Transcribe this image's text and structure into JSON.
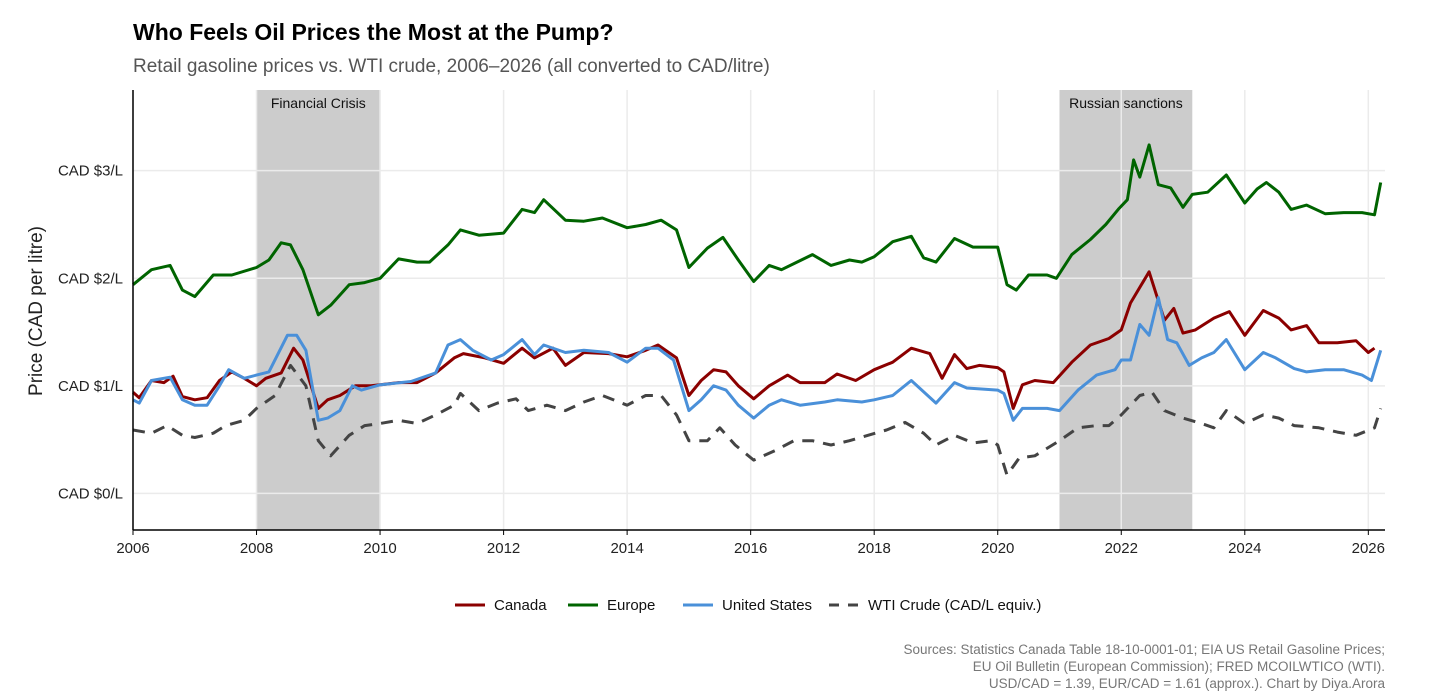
{
  "chart_data": {
    "type": "line",
    "title": "Who Feels Oil Prices the Most at the Pump?",
    "subtitle": "Retail gasoline prices vs. WTI crude, 2006–2026 (all converted to CAD/litre)",
    "xlabel": "",
    "ylabel": "Price (CAD per litre)",
    "xlim": [
      2006,
      2026.27
    ],
    "ylim": [
      -0.34,
      3.75
    ],
    "grid": true,
    "legend_position": "bottom",
    "x_ticks": [
      2006,
      2008,
      2010,
      2012,
      2014,
      2016,
      2018,
      2020,
      2022,
      2024,
      2026
    ],
    "x_tick_labels": [
      "2006",
      "2008",
      "2010",
      "2012",
      "2014",
      "2016",
      "2018",
      "2020",
      "2022",
      "2024",
      "2026"
    ],
    "y_ticks": [
      0,
      1,
      2,
      3
    ],
    "y_tick_labels": [
      "CAD $0/L",
      "CAD $1/L",
      "CAD $2/L",
      "CAD $3/L"
    ],
    "shaded_periods": [
      {
        "label": "Financial Crisis",
        "start": 2008.0,
        "end": 2010.0
      },
      {
        "label": "Russian sanctions",
        "start": 2021.0,
        "end": 2023.15
      }
    ],
    "series": [
      {
        "name": "Canada",
        "color": "#8b0000",
        "dashed": false,
        "x": [
          2006.0,
          2006.1,
          2006.3,
          2006.5,
          2006.65,
          2006.8,
          2007.0,
          2007.2,
          2007.4,
          2007.6,
          2007.8,
          2008.0,
          2008.15,
          2008.4,
          2008.6,
          2008.75,
          2009.0,
          2009.15,
          2009.35,
          2009.6,
          2009.85,
          2010.0,
          2010.3,
          2010.6,
          2010.9,
          2011.2,
          2011.35,
          2011.7,
          2012.0,
          2012.3,
          2012.5,
          2012.8,
          2013.0,
          2013.3,
          2013.7,
          2014.0,
          2014.3,
          2014.5,
          2014.8,
          2015.0,
          2015.2,
          2015.4,
          2015.6,
          2015.8,
          2016.05,
          2016.3,
          2016.6,
          2016.8,
          2017.2,
          2017.4,
          2017.7,
          2018.0,
          2018.3,
          2018.6,
          2018.9,
          2019.1,
          2019.3,
          2019.5,
          2019.7,
          2020.0,
          2020.1,
          2020.25,
          2020.4,
          2020.6,
          2020.9,
          2021.2,
          2021.5,
          2021.8,
          2022.0,
          2022.15,
          2022.45,
          2022.7,
          2022.85,
          2023.0,
          2023.2,
          2023.5,
          2023.75,
          2024.0,
          2024.3,
          2024.55,
          2024.75,
          2025.0,
          2025.2,
          2025.5,
          2025.8,
          2026.0,
          2026.1
        ],
        "values": [
          0.94,
          0.89,
          1.05,
          1.03,
          1.09,
          0.9,
          0.87,
          0.89,
          1.05,
          1.13,
          1.07,
          1.0,
          1.07,
          1.12,
          1.35,
          1.24,
          0.79,
          0.87,
          0.91,
          1.0,
          1.0,
          1.01,
          1.03,
          1.03,
          1.12,
          1.26,
          1.3,
          1.26,
          1.21,
          1.35,
          1.26,
          1.35,
          1.19,
          1.31,
          1.3,
          1.27,
          1.33,
          1.38,
          1.26,
          0.91,
          1.05,
          1.15,
          1.13,
          1.0,
          0.88,
          1.0,
          1.1,
          1.03,
          1.03,
          1.11,
          1.05,
          1.15,
          1.22,
          1.35,
          1.3,
          1.07,
          1.29,
          1.16,
          1.19,
          1.17,
          1.13,
          0.79,
          1.01,
          1.05,
          1.03,
          1.22,
          1.38,
          1.44,
          1.52,
          1.77,
          2.06,
          1.61,
          1.72,
          1.49,
          1.52,
          1.63,
          1.69,
          1.47,
          1.7,
          1.63,
          1.52,
          1.56,
          1.4,
          1.4,
          1.42,
          1.31,
          1.35
        ]
      },
      {
        "name": "Europe",
        "color": "#006400",
        "dashed": false,
        "x": [
          2006.0,
          2006.3,
          2006.6,
          2006.8,
          2007.0,
          2007.3,
          2007.6,
          2008.0,
          2008.2,
          2008.4,
          2008.55,
          2008.75,
          2009.0,
          2009.2,
          2009.5,
          2009.75,
          2010.0,
          2010.3,
          2010.6,
          2010.8,
          2011.1,
          2011.3,
          2011.6,
          2012.0,
          2012.3,
          2012.5,
          2012.65,
          2013.0,
          2013.3,
          2013.6,
          2014.0,
          2014.3,
          2014.55,
          2014.8,
          2015.0,
          2015.3,
          2015.55,
          2015.8,
          2016.05,
          2016.3,
          2016.5,
          2016.75,
          2017.0,
          2017.3,
          2017.6,
          2017.8,
          2018.0,
          2018.3,
          2018.6,
          2018.8,
          2019.0,
          2019.3,
          2019.6,
          2020.0,
          2020.15,
          2020.3,
          2020.5,
          2020.8,
          2020.95,
          2021.2,
          2021.5,
          2021.75,
          2021.95,
          2022.1,
          2022.2,
          2022.3,
          2022.45,
          2022.6,
          2022.8,
          2023.0,
          2023.15,
          2023.4,
          2023.7,
          2024.0,
          2024.2,
          2024.35,
          2024.55,
          2024.75,
          2025.0,
          2025.3,
          2025.6,
          2025.9,
          2026.1,
          2026.2
        ],
        "values": [
          1.94,
          2.08,
          2.12,
          1.89,
          1.83,
          2.03,
          2.03,
          2.1,
          2.17,
          2.33,
          2.31,
          2.08,
          1.66,
          1.75,
          1.94,
          1.96,
          2.0,
          2.18,
          2.15,
          2.15,
          2.31,
          2.45,
          2.4,
          2.42,
          2.64,
          2.61,
          2.73,
          2.54,
          2.53,
          2.56,
          2.47,
          2.5,
          2.54,
          2.45,
          2.1,
          2.28,
          2.38,
          2.17,
          1.97,
          2.12,
          2.08,
          2.15,
          2.22,
          2.12,
          2.17,
          2.15,
          2.2,
          2.34,
          2.39,
          2.19,
          2.15,
          2.37,
          2.29,
          2.29,
          1.94,
          1.89,
          2.03,
          2.03,
          2.0,
          2.22,
          2.36,
          2.5,
          2.64,
          2.73,
          3.1,
          2.94,
          3.24,
          2.87,
          2.84,
          2.66,
          2.78,
          2.8,
          2.96,
          2.7,
          2.83,
          2.89,
          2.8,
          2.64,
          2.68,
          2.6,
          2.61,
          2.61,
          2.59,
          2.89
        ]
      },
      {
        "name": "United States",
        "color": "#4a90d9",
        "dashed": false,
        "x": [
          2006.0,
          2006.1,
          2006.3,
          2006.6,
          2006.8,
          2007.0,
          2007.2,
          2007.4,
          2007.55,
          2007.8,
          2008.0,
          2008.2,
          2008.5,
          2008.65,
          2008.8,
          2009.0,
          2009.15,
          2009.35,
          2009.55,
          2009.7,
          2010.0,
          2010.5,
          2010.9,
          2011.1,
          2011.3,
          2011.5,
          2011.8,
          2012.0,
          2012.3,
          2012.5,
          2012.65,
          2013.0,
          2013.3,
          2013.7,
          2014.0,
          2014.3,
          2014.5,
          2014.75,
          2015.0,
          2015.2,
          2015.4,
          2015.6,
          2015.8,
          2016.05,
          2016.3,
          2016.5,
          2016.8,
          2017.2,
          2017.4,
          2017.8,
          2018.0,
          2018.3,
          2018.6,
          2019.0,
          2019.3,
          2019.5,
          2020.0,
          2020.1,
          2020.25,
          2020.4,
          2020.8,
          2021.0,
          2021.3,
          2021.6,
          2021.9,
          2022.0,
          2022.15,
          2022.3,
          2022.45,
          2022.6,
          2022.75,
          2022.9,
          2023.1,
          2023.3,
          2023.5,
          2023.7,
          2024.0,
          2024.3,
          2024.5,
          2024.8,
          2025.0,
          2025.3,
          2025.6,
          2025.9,
          2026.05,
          2026.2
        ],
        "values": [
          0.87,
          0.84,
          1.05,
          1.08,
          0.87,
          0.82,
          0.82,
          1.0,
          1.15,
          1.07,
          1.1,
          1.13,
          1.47,
          1.47,
          1.33,
          0.68,
          0.7,
          0.77,
          1.0,
          0.96,
          1.01,
          1.04,
          1.12,
          1.38,
          1.43,
          1.33,
          1.24,
          1.29,
          1.43,
          1.29,
          1.38,
          1.31,
          1.33,
          1.31,
          1.22,
          1.35,
          1.35,
          1.24,
          0.77,
          0.87,
          1.0,
          0.96,
          0.82,
          0.7,
          0.82,
          0.87,
          0.82,
          0.85,
          0.87,
          0.85,
          0.87,
          0.91,
          1.05,
          0.84,
          1.03,
          0.98,
          0.96,
          0.93,
          0.68,
          0.79,
          0.79,
          0.77,
          0.96,
          1.1,
          1.15,
          1.24,
          1.24,
          1.57,
          1.47,
          1.82,
          1.43,
          1.4,
          1.19,
          1.26,
          1.31,
          1.43,
          1.15,
          1.31,
          1.26,
          1.16,
          1.13,
          1.15,
          1.15,
          1.1,
          1.05,
          1.33
        ]
      },
      {
        "name": "WTI Crude (CAD/L equiv.)",
        "color": "#444444",
        "dashed": true,
        "x": [
          2006.0,
          2006.3,
          2006.55,
          2006.8,
          2007.0,
          2007.3,
          2007.5,
          2007.8,
          2008.0,
          2008.3,
          2008.55,
          2008.8,
          2009.0,
          2009.2,
          2009.5,
          2009.75,
          2010.0,
          2010.3,
          2010.6,
          2010.9,
          2011.2,
          2011.3,
          2011.6,
          2011.9,
          2012.2,
          2012.4,
          2012.7,
          2013.0,
          2013.3,
          2013.6,
          2014.0,
          2014.3,
          2014.55,
          2014.8,
          2015.0,
          2015.3,
          2015.5,
          2015.75,
          2016.05,
          2016.4,
          2016.7,
          2017.0,
          2017.3,
          2017.6,
          2017.9,
          2018.2,
          2018.5,
          2018.8,
          2019.0,
          2019.3,
          2019.6,
          2019.9,
          2020.0,
          2020.15,
          2020.35,
          2020.6,
          2021.0,
          2021.3,
          2021.6,
          2021.8,
          2022.0,
          2022.3,
          2022.5,
          2022.7,
          2023.0,
          2023.3,
          2023.5,
          2023.7,
          2024.0,
          2024.3,
          2024.55,
          2024.8,
          2025.2,
          2025.5,
          2025.8,
          2026.1,
          2026.2
        ],
        "values": [
          0.59,
          0.56,
          0.63,
          0.54,
          0.52,
          0.56,
          0.63,
          0.68,
          0.79,
          0.91,
          1.19,
          1.0,
          0.49,
          0.35,
          0.54,
          0.63,
          0.65,
          0.68,
          0.65,
          0.73,
          0.82,
          0.93,
          0.77,
          0.84,
          0.88,
          0.77,
          0.82,
          0.77,
          0.85,
          0.91,
          0.82,
          0.91,
          0.91,
          0.73,
          0.49,
          0.49,
          0.61,
          0.45,
          0.31,
          0.4,
          0.49,
          0.49,
          0.45,
          0.49,
          0.54,
          0.59,
          0.66,
          0.56,
          0.45,
          0.54,
          0.47,
          0.49,
          0.45,
          0.17,
          0.33,
          0.35,
          0.49,
          0.61,
          0.63,
          0.63,
          0.73,
          0.91,
          0.94,
          0.77,
          0.7,
          0.65,
          0.61,
          0.77,
          0.65,
          0.73,
          0.7,
          0.63,
          0.61,
          0.57,
          0.54,
          0.61,
          0.79
        ]
      }
    ],
    "sources": [
      "Sources: Statistics Canada Table 18-10-0001-01; EIA US Retail Gasoline Prices;",
      "EU Oil Bulletin (European Commission); FRED MCOILWTICO (WTI).",
      "USD/CAD = 1.39, EUR/CAD = 1.61 (approx.). Chart by Diya.Arora"
    ]
  }
}
